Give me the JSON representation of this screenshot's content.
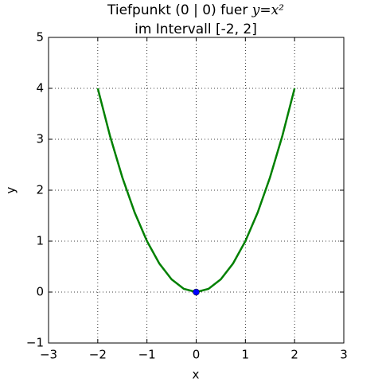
{
  "chart_data": {
    "type": "line",
    "title": {
      "text": "Tiefpunkt (0 | 0) fuer",
      "math": "y=x²"
    },
    "subtitle": "im Intervall [-2, 2]",
    "x_label": "x",
    "y_label": "y",
    "xlim": [
      -3,
      3
    ],
    "ylim": [
      -1,
      5
    ],
    "xticks": [
      {
        "value": -3,
        "label": "−3"
      },
      {
        "value": -2,
        "label": "−2"
      },
      {
        "value": -1,
        "label": "−1"
      },
      0,
      1,
      2,
      3
    ],
    "yticks": [
      {
        "value": -1,
        "label": "−1"
      },
      0,
      1,
      2,
      3,
      4,
      5
    ],
    "grid": true,
    "series": [
      {
        "color": "#008000",
        "style": "line",
        "x": [
          -2,
          -1.75,
          -1.5,
          -1.25,
          -1,
          -0.75,
          -0.5,
          -0.25,
          0,
          0.25,
          0.5,
          0.75,
          1,
          1.25,
          1.5,
          1.75,
          2
        ],
        "values": [
          4,
          3.0625,
          2.25,
          1.5625,
          1,
          0.5625,
          0.25,
          0.0625,
          0,
          0.0625,
          0.25,
          0.5625,
          1,
          1.5625,
          2.25,
          3.0625,
          4
        ]
      },
      {
        "color": "#0000ff",
        "style": "marker",
        "x": [
          0
        ],
        "values": [
          0
        ]
      }
    ]
  }
}
